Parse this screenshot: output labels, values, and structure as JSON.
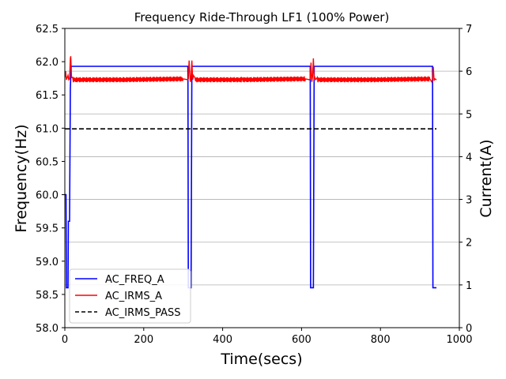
{
  "chart_data": {
    "type": "line",
    "title": "Frequency Ride-Through LF1 (100% Power)",
    "xlabel": "Time(secs)",
    "ylabel": "Frequency(Hz)",
    "y2label": "Current(A)",
    "xlim": [
      0,
      1000
    ],
    "ylim": [
      58.0,
      62.5
    ],
    "y2lim": [
      0,
      7
    ],
    "xticks": [
      "0",
      "200",
      "400",
      "600",
      "800",
      "1000"
    ],
    "yticks": [
      "58.0",
      "58.5",
      "59.0",
      "59.5",
      "60.0",
      "60.5",
      "61.0",
      "61.5",
      "62.0",
      "62.5"
    ],
    "y2ticks": [
      "0",
      "1",
      "2",
      "3",
      "4",
      "5",
      "6",
      "7"
    ],
    "grid": "horizontal (right axis)",
    "legend_position": "lower-left",
    "series": [
      {
        "name": "AC_FREQ_A",
        "axis": "left",
        "color": "#0000ff",
        "style": "solid",
        "x": [
          0,
          3,
          4,
          8,
          9,
          12,
          14,
          16,
          312,
          313,
          320,
          322,
          330,
          332,
          622,
          623,
          630,
          632,
          932,
          933,
          942
        ],
        "y": [
          60.0,
          60.0,
          58.6,
          58.6,
          59.6,
          59.6,
          61.6,
          61.93,
          61.93,
          58.6,
          58.6,
          61.93,
          61.93,
          61.93,
          61.93,
          58.6,
          58.6,
          61.93,
          61.93,
          58.6,
          58.6
        ]
      },
      {
        "name": "AC_IRMS_A",
        "axis": "right",
        "color": "#ff0000",
        "style": "solid",
        "x": [
          0,
          2,
          4,
          6,
          8,
          10,
          12,
          14,
          15,
          17,
          20,
          150,
          300,
          312,
          313,
          315,
          318,
          320,
          322,
          324,
          326,
          330,
          450,
          610,
          620,
          622,
          624,
          626,
          628,
          630,
          632,
          634,
          636,
          640,
          780,
          925,
          930,
          932,
          934,
          936,
          938,
          942
        ],
        "y": [
          5.85,
          6.0,
          5.8,
          5.85,
          5.9,
          5.8,
          5.82,
          6.3,
          6.35,
          5.85,
          5.8,
          5.8,
          5.82,
          5.8,
          5.82,
          6.25,
          5.75,
          5.85,
          6.25,
          5.8,
          5.9,
          5.8,
          5.8,
          5.82,
          5.8,
          5.82,
          6.2,
          5.75,
          5.88,
          6.3,
          5.8,
          5.85,
          5.8,
          5.8,
          5.8,
          5.82,
          5.75,
          5.82,
          6.1,
          5.78,
          5.82,
          5.8
        ],
        "ripple_amplitude": 0.06
      },
      {
        "name": "AC_IRMS_PASS",
        "axis": "right",
        "color": "#000000",
        "style": "dashed",
        "x": [
          0,
          942
        ],
        "y": [
          4.65,
          4.65
        ]
      }
    ]
  }
}
